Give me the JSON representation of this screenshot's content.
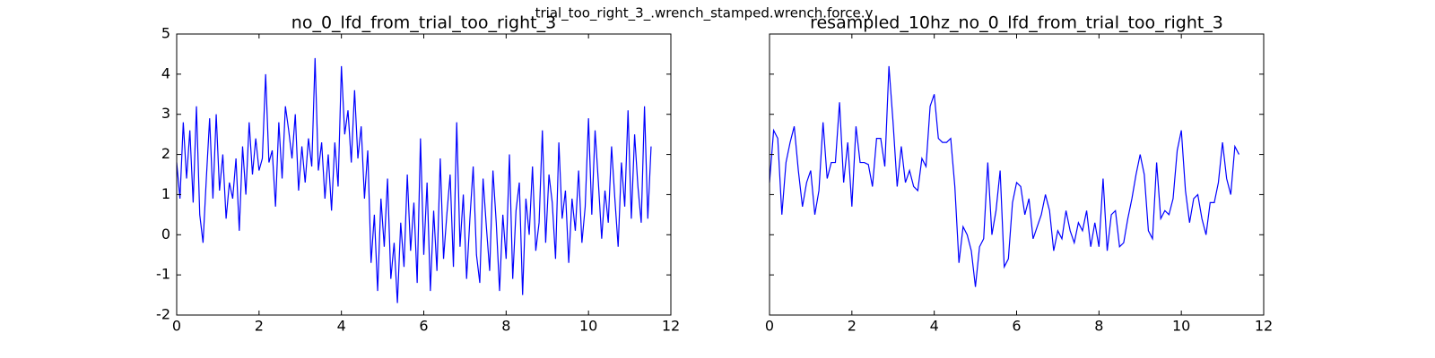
{
  "title": "trial_too_right_3_.wrench_stamped.wrench.force.y",
  "chart_data": [
    {
      "type": "line",
      "title": "no_0_lfd_from_trial_too_right_3",
      "color": "#0000ff",
      "xlim": [
        0,
        12
      ],
      "xticks": [
        0,
        2,
        4,
        6,
        8,
        10,
        12
      ],
      "ylim": [
        -2,
        5
      ],
      "yticks": [
        -2,
        -1,
        0,
        1,
        2,
        3,
        4,
        5
      ],
      "show_ytick_labels": true,
      "x": [
        0,
        0.08,
        0.16,
        0.24,
        0.32,
        0.4,
        0.48,
        0.56,
        0.64,
        0.72,
        0.8,
        0.88,
        0.96,
        1.04,
        1.12,
        1.2,
        1.28,
        1.36,
        1.44,
        1.52,
        1.6,
        1.68,
        1.76,
        1.84,
        1.92,
        2,
        2.08,
        2.16,
        2.24,
        2.32,
        2.4,
        2.48,
        2.56,
        2.64,
        2.72,
        2.8,
        2.88,
        2.96,
        3.04,
        3.12,
        3.2,
        3.28,
        3.36,
        3.44,
        3.52,
        3.6,
        3.68,
        3.76,
        3.84,
        3.92,
        4,
        4.08,
        4.16,
        4.24,
        4.32,
        4.4,
        4.48,
        4.56,
        4.64,
        4.72,
        4.8,
        4.88,
        4.96,
        5.04,
        5.12,
        5.2,
        5.28,
        5.36,
        5.44,
        5.52,
        5.6,
        5.68,
        5.76,
        5.84,
        5.92,
        6,
        6.08,
        6.16,
        6.24,
        6.32,
        6.4,
        6.48,
        6.56,
        6.64,
        6.72,
        6.8,
        6.88,
        6.96,
        7.04,
        7.12,
        7.2,
        7.28,
        7.36,
        7.44,
        7.52,
        7.6,
        7.68,
        7.76,
        7.84,
        7.92,
        8,
        8.08,
        8.16,
        8.24,
        8.32,
        8.4,
        8.48,
        8.56,
        8.64,
        8.72,
        8.8,
        8.88,
        8.96,
        9.04,
        9.12,
        9.2,
        9.28,
        9.36,
        9.44,
        9.52,
        9.6,
        9.68,
        9.76,
        9.84,
        9.92,
        10,
        10.08,
        10.16,
        10.24,
        10.32,
        10.4,
        10.48,
        10.56,
        10.64,
        10.72,
        10.8,
        10.88,
        10.96,
        11.04,
        11.12,
        11.2,
        11.28,
        11.36,
        11.44,
        11.52
      ],
      "values": [
        1.8,
        0.9,
        2.8,
        1.4,
        2.6,
        0.8,
        3.2,
        0.5,
        -0.2,
        1.4,
        2.9,
        0.9,
        3.0,
        1.1,
        2.0,
        0.4,
        1.3,
        0.9,
        1.9,
        0.1,
        2.2,
        1.0,
        2.8,
        1.5,
        2.4,
        1.6,
        1.9,
        4.0,
        1.8,
        2.1,
        0.7,
        2.8,
        1.4,
        3.2,
        2.6,
        1.9,
        3.0,
        1.1,
        2.2,
        1.3,
        2.4,
        1.7,
        4.4,
        1.6,
        2.3,
        0.9,
        2.0,
        0.6,
        2.3,
        1.2,
        4.2,
        2.5,
        3.1,
        1.8,
        3.6,
        1.9,
        2.7,
        0.9,
        2.1,
        -0.7,
        0.5,
        -1.4,
        0.9,
        -0.3,
        1.4,
        -1.1,
        -0.2,
        -1.7,
        0.3,
        -0.8,
        1.5,
        -0.4,
        0.8,
        -1.2,
        2.4,
        -0.5,
        1.3,
        -1.4,
        0.6,
        -0.9,
        1.9,
        -0.6,
        0.5,
        1.5,
        -0.8,
        2.8,
        -0.3,
        1.0,
        -1.1,
        0.4,
        1.7,
        -0.5,
        -1.2,
        1.4,
        0.2,
        -0.9,
        1.6,
        0.3,
        -1.4,
        0.5,
        -0.6,
        2.0,
        -1.1,
        0.6,
        1.3,
        -1.5,
        0.9,
        0.0,
        1.7,
        -0.4,
        0.3,
        2.6,
        -0.2,
        1.5,
        0.8,
        -0.6,
        2.3,
        0.4,
        1.1,
        -0.7,
        0.9,
        0.1,
        1.6,
        -0.2,
        0.7,
        2.9,
        0.5,
        2.6,
        1.3,
        -0.1,
        1.1,
        0.3,
        2.2,
        0.9,
        -0.3,
        1.8,
        0.7,
        3.1,
        0.4,
        2.5,
        1.2,
        0.3,
        3.2,
        0.4,
        2.2
      ]
    },
    {
      "type": "line",
      "title": "resampled_10hz_no_0_lfd_from_trial_too_right_3",
      "color": "#0000ff",
      "xlim": [
        0,
        12
      ],
      "xticks": [
        0,
        2,
        4,
        6,
        8,
        10,
        12
      ],
      "ylim": [
        -2,
        5
      ],
      "yticks": [
        -2,
        -1,
        0,
        1,
        2,
        3,
        4,
        5
      ],
      "show_ytick_labels": false,
      "x": [
        0,
        0.1,
        0.2,
        0.3,
        0.4,
        0.5,
        0.6,
        0.7,
        0.8,
        0.9,
        1,
        1.1,
        1.2,
        1.3,
        1.4,
        1.5,
        1.6,
        1.7,
        1.8,
        1.9,
        2,
        2.1,
        2.2,
        2.3,
        2.4,
        2.5,
        2.6,
        2.7,
        2.8,
        2.9,
        3,
        3.1,
        3.2,
        3.3,
        3.4,
        3.5,
        3.6,
        3.7,
        3.8,
        3.9,
        4,
        4.1,
        4.2,
        4.3,
        4.4,
        4.5,
        4.6,
        4.7,
        4.8,
        4.9,
        5,
        5.1,
        5.2,
        5.3,
        5.4,
        5.5,
        5.6,
        5.7,
        5.8,
        5.9,
        6,
        6.1,
        6.2,
        6.3,
        6.4,
        6.5,
        6.6,
        6.7,
        6.8,
        6.9,
        7,
        7.1,
        7.2,
        7.3,
        7.4,
        7.5,
        7.6,
        7.7,
        7.8,
        7.9,
        8,
        8.1,
        8.2,
        8.3,
        8.4,
        8.5,
        8.6,
        8.7,
        8.8,
        8.9,
        9,
        9.1,
        9.2,
        9.3,
        9.4,
        9.5,
        9.6,
        9.7,
        9.8,
        9.9,
        10,
        10.1,
        10.2,
        10.3,
        10.4,
        10.5,
        10.6,
        10.7,
        10.8,
        10.9,
        11,
        11.1,
        11.2,
        11.3,
        11.4
      ],
      "values": [
        1.3,
        2.6,
        2.4,
        0.5,
        1.8,
        2.3,
        2.7,
        1.6,
        0.7,
        1.3,
        1.6,
        0.5,
        1.1,
        2.8,
        1.4,
        1.8,
        1.8,
        3.3,
        1.3,
        2.3,
        0.7,
        2.7,
        1.8,
        1.8,
        1.75,
        1.2,
        2.4,
        2.4,
        1.7,
        4.2,
        2.8,
        1.2,
        2.2,
        1.3,
        1.6,
        1.2,
        1.1,
        1.9,
        1.7,
        3.2,
        3.5,
        2.4,
        2.3,
        2.3,
        2.4,
        1.2,
        -0.7,
        0.2,
        0.0,
        -0.4,
        -1.3,
        -0.3,
        -0.1,
        1.8,
        0.0,
        0.6,
        1.6,
        -0.8,
        -0.6,
        0.8,
        1.3,
        1.2,
        0.5,
        0.9,
        -0.1,
        0.2,
        0.5,
        1.0,
        0.6,
        -0.4,
        0.1,
        -0.1,
        0.6,
        0.1,
        -0.2,
        0.3,
        0.1,
        0.6,
        -0.3,
        0.3,
        -0.3,
        1.4,
        -0.4,
        0.5,
        0.6,
        -0.3,
        -0.2,
        0.4,
        0.9,
        1.5,
        2.0,
        1.5,
        0.1,
        -0.1,
        1.8,
        0.4,
        0.6,
        0.5,
        0.9,
        2.1,
        2.6,
        1.1,
        0.3,
        0.9,
        1.0,
        0.4,
        0.0,
        0.8,
        0.8,
        1.3,
        2.3,
        1.4,
        1.0,
        2.2,
        2.0
      ]
    }
  ]
}
